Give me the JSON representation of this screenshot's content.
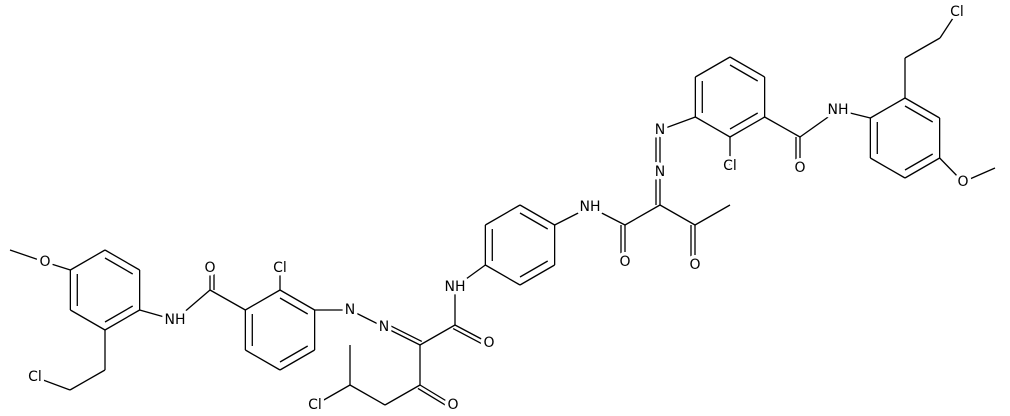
{
  "atoms": [
    "Cl",
    "NH",
    "O",
    "Cl",
    "N",
    "N",
    "O",
    "O",
    "NH",
    "O",
    "NH",
    "O",
    "N",
    "N",
    "O",
    "Cl",
    "Cl",
    "O",
    "NH",
    "O",
    "Cl"
  ]
}
